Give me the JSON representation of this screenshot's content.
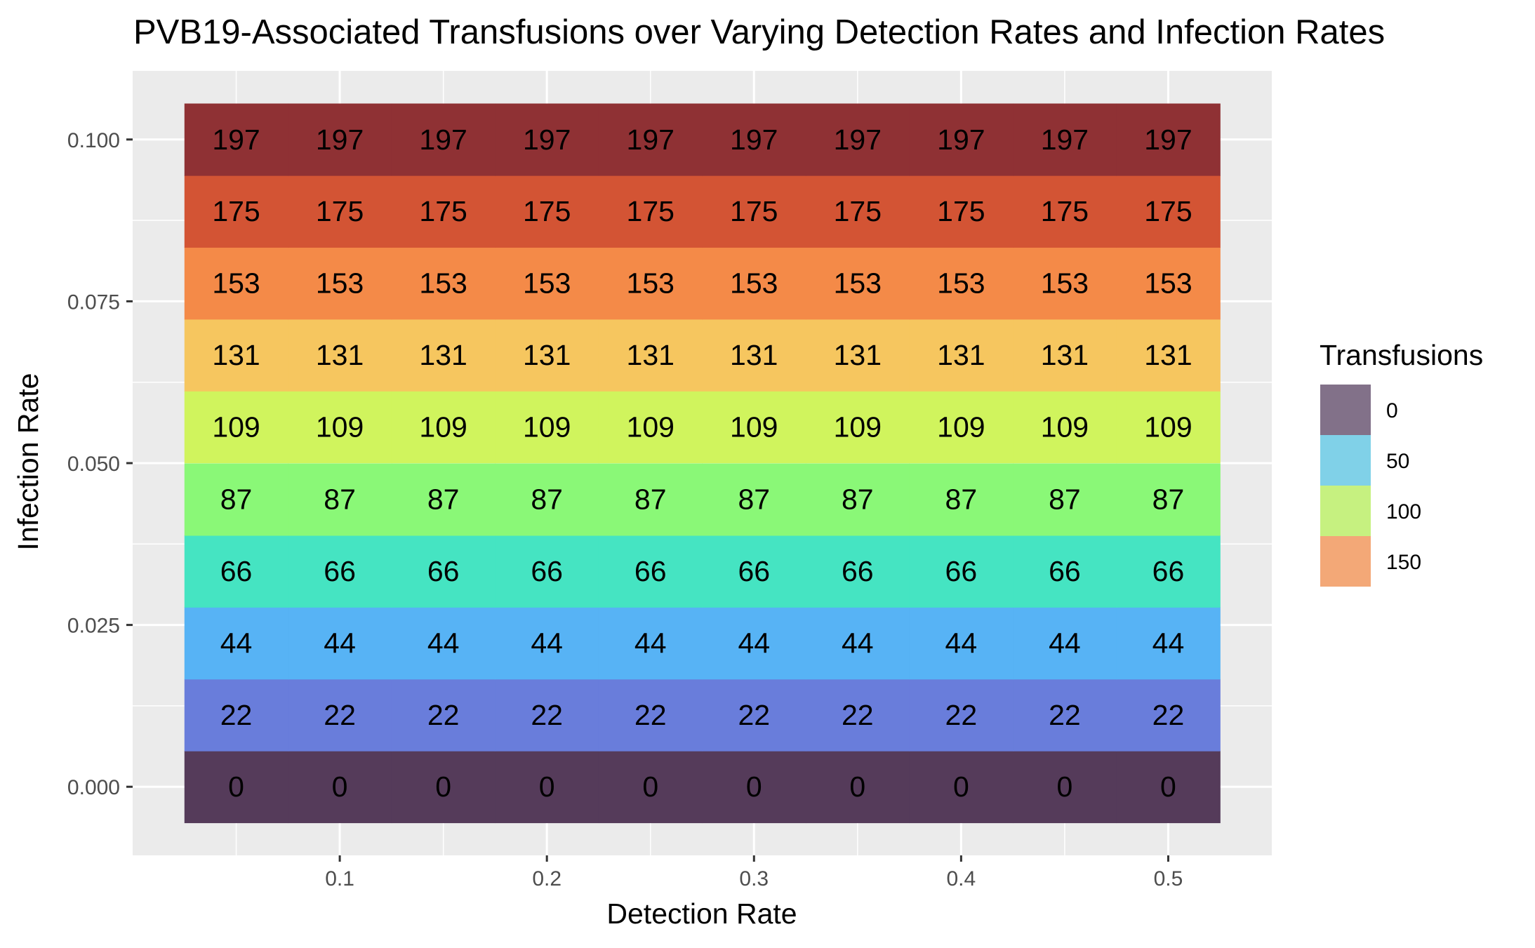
{
  "chart_data": {
    "type": "heatmap",
    "title": "PVB19-Associated Transfusions over Varying Detection Rates and Infection Rates",
    "xlabel": "Detection Rate",
    "ylabel": "Infection Rate",
    "x": [
      0.05,
      0.1,
      0.15,
      0.2,
      0.25,
      0.3,
      0.35,
      0.4,
      0.45,
      0.5
    ],
    "y": [
      0.0,
      0.0111,
      0.0222,
      0.0333,
      0.0444,
      0.0556,
      0.0667,
      0.0778,
      0.0889,
      0.1
    ],
    "row_values": [
      0,
      22,
      44,
      66,
      87,
      109,
      131,
      153,
      175,
      197
    ],
    "row_colors": [
      "#553b5a",
      "#697ddb",
      "#57b3f5",
      "#45e4c2",
      "#8af877",
      "#d0f45d",
      "#f6c65f",
      "#f48a48",
      "#d35434",
      "#8f3134"
    ],
    "x_ticks": [
      0.1,
      0.2,
      0.3,
      0.4,
      0.5
    ],
    "x_tick_labels": [
      "0.1",
      "0.2",
      "0.3",
      "0.4",
      "0.5"
    ],
    "y_ticks": [
      0.0,
      0.025,
      0.05,
      0.075,
      0.1
    ],
    "y_tick_labels": [
      "0.000",
      "0.025",
      "0.050",
      "0.075",
      "0.100"
    ],
    "xlim": [
      0.0,
      0.55
    ],
    "ylim": [
      -0.0106,
      0.1106
    ],
    "grid": true,
    "legend": {
      "title": "Transfusions",
      "position": "right",
      "entries": [
        {
          "label": "0",
          "color": "#827189"
        },
        {
          "label": "50",
          "color": "#80d1e8"
        },
        {
          "label": "100",
          "color": "#c6f180"
        },
        {
          "label": "150",
          "color": "#f3a877"
        }
      ]
    },
    "colors": {
      "panel_background": "#ebebeb",
      "grid": "#ffffff",
      "tick": "#333333"
    }
  }
}
